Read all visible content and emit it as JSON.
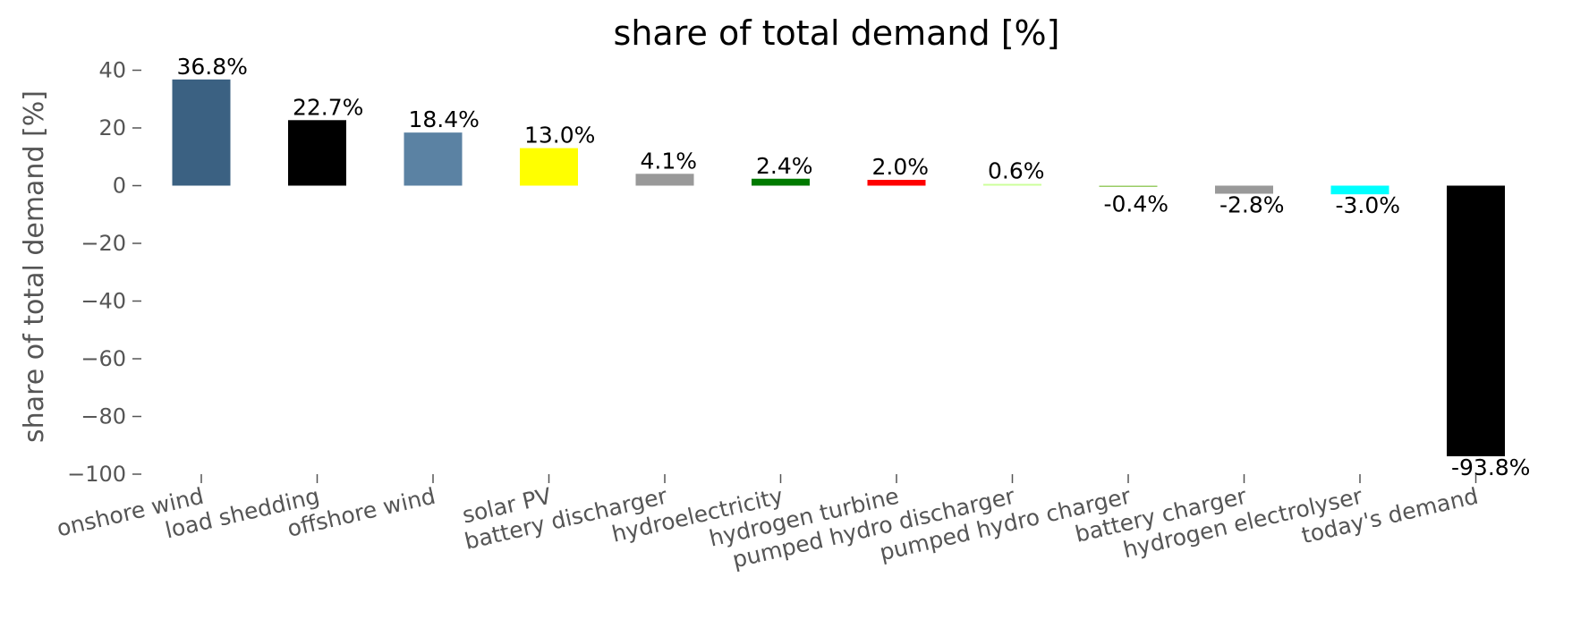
{
  "chart_data": {
    "type": "bar",
    "title": "share of total demand [%]",
    "ylabel": "share of total demand [%]",
    "xlabel": "",
    "ylim": [
      -100,
      45
    ],
    "yticks": [
      40,
      20,
      0,
      -20,
      -40,
      -60,
      -80,
      -100
    ],
    "ytick_labels": [
      "40",
      "20",
      "0",
      "−20",
      "−40",
      "−60",
      "−80",
      "−100"
    ],
    "grid": false,
    "categories": [
      "onshore wind",
      "load shedding",
      "offshore wind",
      "solar PV",
      "battery discharger",
      "hydroelectricity",
      "hydrogen turbine",
      "pumped hydro discharger",
      "pumped hydro charger",
      "battery charger",
      "hydrogen electrolyser",
      "today's demand"
    ],
    "values": [
      36.8,
      22.7,
      18.4,
      13.0,
      4.1,
      2.4,
      2.0,
      0.6,
      -0.4,
      -2.8,
      -3.0,
      -93.8
    ],
    "labels": [
      "36.8%",
      "22.7%",
      "18.4%",
      "13.0%",
      "4.1%",
      "2.4%",
      "2.0%",
      "0.6%",
      "-0.4%",
      "-2.8%",
      "-3.0%",
      "-93.8%"
    ],
    "colors": [
      "#3b6182",
      "#000000",
      "#5b82a3",
      "#ffff00",
      "#999999",
      "#007a00",
      "#ff0000",
      "#ccff99",
      "#99cc66",
      "#999999",
      "#00ffff",
      "#000000"
    ]
  }
}
